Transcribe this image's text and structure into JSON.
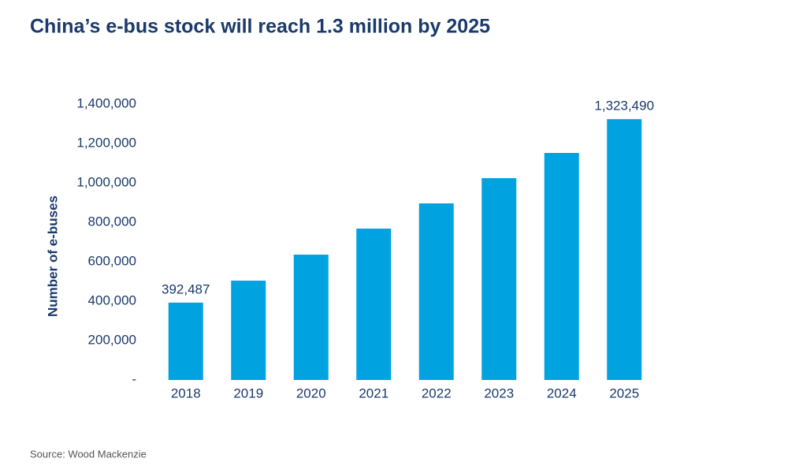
{
  "chart_data": {
    "type": "bar",
    "title": "China’s e-bus stock will reach 1.3 million by 2025",
    "y_label": "Number of e-buses",
    "source": "Source: Wood Mackenzie",
    "categories": [
      "2018",
      "2019",
      "2020",
      "2021",
      "2022",
      "2023",
      "2024",
      "2025"
    ],
    "values": [
      392487,
      504000,
      636000,
      768000,
      896000,
      1024000,
      1152000,
      1323490
    ],
    "value_labels": [
      "392,487",
      null,
      null,
      null,
      null,
      null,
      null,
      "1,323,490"
    ],
    "color": "#00a3e0",
    "ylim": [
      0,
      1400000
    ],
    "yticks": [
      {
        "value": 0,
        "label": "-"
      },
      {
        "value": 200000,
        "label": "200,000"
      },
      {
        "value": 400000,
        "label": "400,000"
      },
      {
        "value": 600000,
        "label": "600,000"
      },
      {
        "value": 800000,
        "label": "800,000"
      },
      {
        "value": 1000000,
        "label": "1,000,000"
      },
      {
        "value": 1200000,
        "label": "1,200,000"
      },
      {
        "value": 1400000,
        "label": "1,400,000"
      }
    ],
    "grid": false
  }
}
